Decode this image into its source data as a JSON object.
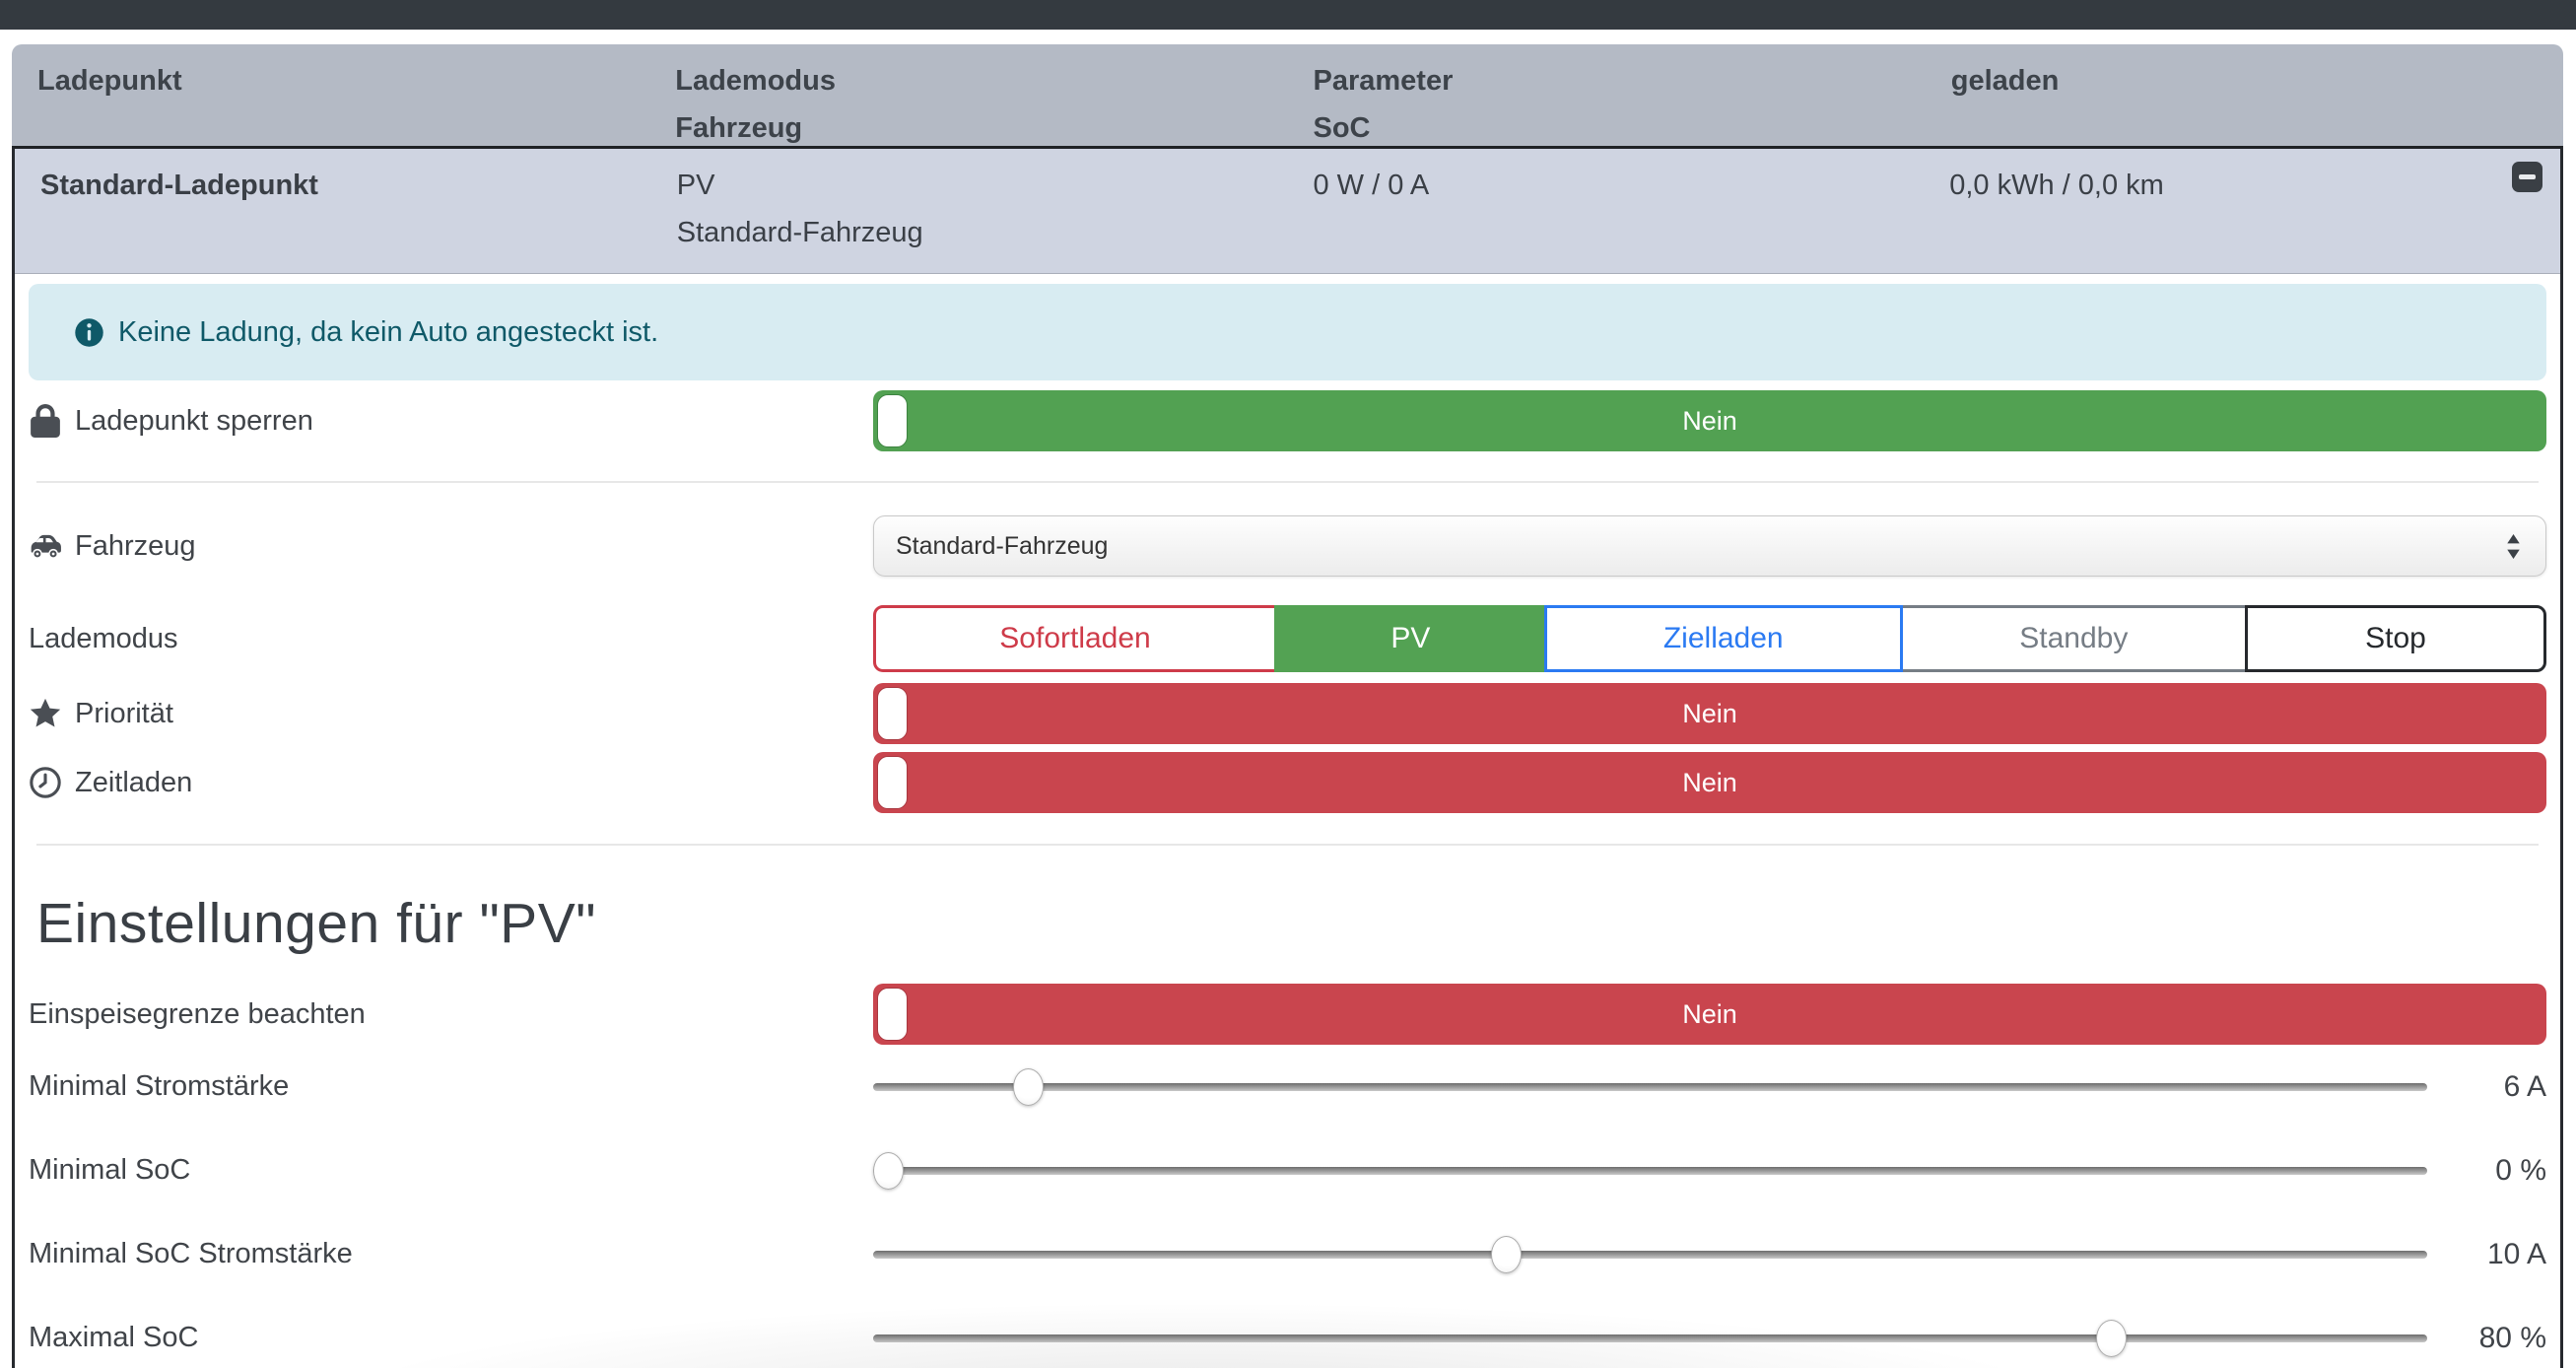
{
  "table": {
    "headers": [
      {
        "line1": "Ladepunkt",
        "line2": ""
      },
      {
        "line1": "Lademodus",
        "line2": "Fahrzeug"
      },
      {
        "line1": "Parameter",
        "line2": "SoC"
      },
      {
        "line1": "geladen",
        "line2": ""
      }
    ],
    "row": {
      "name": "Standard-Ladepunkt",
      "mode": "PV",
      "vehicle": "Standard-Fahrzeug",
      "parameter": "0 W / 0 A",
      "charged": "0,0 kWh / 0,0 km"
    }
  },
  "alert": {
    "text": "Keine Ladung, da kein Auto angesteckt ist."
  },
  "form": {
    "lock_label": "Ladepunkt sperren",
    "lock_value": "Nein",
    "vehicle_label": "Fahrzeug",
    "vehicle_value": "Standard-Fahrzeug",
    "mode_label": "Lademodus",
    "modes": [
      {
        "label": "Sofortladen"
      },
      {
        "label": "PV"
      },
      {
        "label": "Zielladen"
      },
      {
        "label": "Standby"
      },
      {
        "label": "Stop"
      }
    ],
    "active_mode": "PV",
    "priority_label": "Priorität",
    "priority_value": "Nein",
    "timecharge_label": "Zeitladen",
    "timecharge_value": "Nein"
  },
  "settings": {
    "heading": "Einstellungen für \"PV\"",
    "feedin_label": "Einspeisegrenze beachten",
    "feedin_value": "Nein",
    "sliders": [
      {
        "label": "Minimal Stromstärke",
        "value": "6 A",
        "percent": 10
      },
      {
        "label": "Minimal SoC",
        "value": "0 %",
        "percent": 1
      },
      {
        "label": "Minimal SoC Stromstärke",
        "value": "10 A",
        "percent": 40.8
      },
      {
        "label": "Maximal SoC",
        "value": "80 %",
        "percent": 79.7
      }
    ]
  },
  "colors": {
    "navbar": "#343a40",
    "header_bg": "#b4bac5",
    "row_bg": "#cfd4e1",
    "alert_bg": "#d8ecf2",
    "alert_text": "#0f5968",
    "toggle_on_green": "#52a152",
    "toggle_off_red": "#c9454e",
    "mode_sofort": "#ce3b49",
    "mode_pv": "#53a253",
    "mode_ziel": "#2b7af2",
    "mode_standby": "#767d85",
    "mode_stop": "#26292d"
  }
}
